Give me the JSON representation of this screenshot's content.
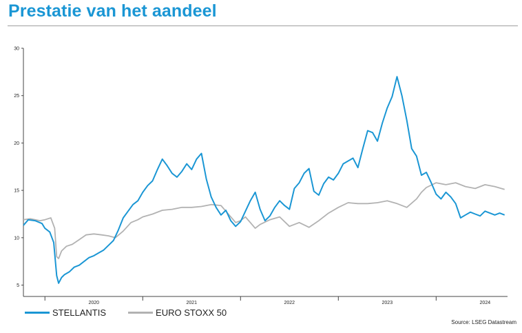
{
  "title": "Prestatie van het aandeel",
  "source": "Source: LSEG Datastream",
  "chart_data": {
    "type": "line",
    "ylim": [
      3.8,
      30
    ],
    "yticks": [
      5,
      10,
      15,
      20,
      25,
      30
    ],
    "xlim": [
      2019.78,
      2024.73
    ],
    "xticks": [
      {
        "label": "2020",
        "x": 2020.0
      },
      {
        "label": "2021",
        "x": 2021.0
      },
      {
        "label": "2022",
        "x": 2022.0
      },
      {
        "label": "2023",
        "x": 2023.0
      },
      {
        "label": "2024",
        "x": 2024.0
      }
    ],
    "grid": false,
    "legend_position": "bottom-left",
    "series": [
      {
        "name": "STELLANTIS",
        "color": "#1a96d4",
        "x": [
          2019.78,
          2019.83,
          2019.9,
          2019.97,
          2020.0,
          2020.05,
          2020.09,
          2020.12,
          2020.14,
          2020.17,
          2020.2,
          2020.25,
          2020.3,
          2020.35,
          2020.4,
          2020.45,
          2020.5,
          2020.55,
          2020.6,
          2020.65,
          2020.7,
          2020.75,
          2020.8,
          2020.85,
          2020.9,
          2020.95,
          2021.0,
          2021.05,
          2021.1,
          2021.15,
          2021.2,
          2021.25,
          2021.3,
          2021.35,
          2021.4,
          2021.45,
          2021.5,
          2021.55,
          2021.6,
          2021.65,
          2021.7,
          2021.75,
          2021.8,
          2021.85,
          2021.9,
          2021.95,
          2022.0,
          2022.05,
          2022.1,
          2022.15,
          2022.2,
          2022.25,
          2022.3,
          2022.35,
          2022.4,
          2022.45,
          2022.5,
          2022.55,
          2022.6,
          2022.65,
          2022.7,
          2022.75,
          2022.8,
          2022.85,
          2022.9,
          2022.95,
          2023.0,
          2023.05,
          2023.1,
          2023.15,
          2023.2,
          2023.25,
          2023.3,
          2023.35,
          2023.4,
          2023.45,
          2023.5,
          2023.55,
          2023.6,
          2023.65,
          2023.7,
          2023.75,
          2023.8,
          2023.85,
          2023.9,
          2023.95,
          2024.0,
          2024.05,
          2024.1,
          2024.15,
          2024.2,
          2024.25,
          2024.3,
          2024.35,
          2024.4,
          2024.45,
          2024.5,
          2024.55,
          2024.6,
          2024.65,
          2024.7
        ],
        "y": [
          11.3,
          11.9,
          11.8,
          11.5,
          11.0,
          10.6,
          9.5,
          6.0,
          5.2,
          5.8,
          6.1,
          6.4,
          6.9,
          7.1,
          7.5,
          7.9,
          8.1,
          8.4,
          8.7,
          9.2,
          9.7,
          10.8,
          12.1,
          12.8,
          13.5,
          13.9,
          14.8,
          15.5,
          16.0,
          17.2,
          18.3,
          17.6,
          16.8,
          16.4,
          17.0,
          17.8,
          17.2,
          18.3,
          18.9,
          16.2,
          14.3,
          13.2,
          12.4,
          12.9,
          11.8,
          11.2,
          11.7,
          12.8,
          13.9,
          14.8,
          13.0,
          11.8,
          12.3,
          13.2,
          13.9,
          13.4,
          13.0,
          15.2,
          15.8,
          16.8,
          17.3,
          14.9,
          14.5,
          15.7,
          16.4,
          16.1,
          16.8,
          17.8,
          18.1,
          18.4,
          17.4,
          19.4,
          21.3,
          21.1,
          20.2,
          22.1,
          23.7,
          24.9,
          27.0,
          25.0,
          22.4,
          19.4,
          18.6,
          16.6,
          16.9,
          15.8,
          14.6,
          14.1,
          14.8,
          14.3,
          13.6,
          12.1,
          12.4,
          12.7,
          12.5,
          12.3,
          12.8,
          12.6,
          12.4,
          12.6,
          12.4
        ]
      },
      {
        "name": "EURO STOXX 50",
        "color": "#b2b2b2",
        "x": [
          2019.78,
          2019.85,
          2019.95,
          2020.0,
          2020.06,
          2020.1,
          2020.12,
          2020.14,
          2020.17,
          2020.22,
          2020.28,
          2020.35,
          2020.42,
          2020.5,
          2020.58,
          2020.65,
          2020.72,
          2020.8,
          2020.88,
          2020.95,
          2021.0,
          2021.1,
          2021.2,
          2021.3,
          2021.4,
          2021.5,
          2021.6,
          2021.7,
          2021.8,
          2021.85,
          2021.9,
          2021.95,
          2022.0,
          2022.05,
          2022.1,
          2022.15,
          2022.2,
          2022.3,
          2022.4,
          2022.5,
          2022.6,
          2022.7,
          2022.8,
          2022.9,
          2023.0,
          2023.1,
          2023.2,
          2023.3,
          2023.4,
          2023.5,
          2023.6,
          2023.7,
          2023.8,
          2023.85,
          2023.9,
          2024.0,
          2024.1,
          2024.2,
          2024.3,
          2024.4,
          2024.5,
          2024.6,
          2024.7
        ],
        "y": [
          11.9,
          12.0,
          11.8,
          11.9,
          12.1,
          11.0,
          8.0,
          7.8,
          8.6,
          9.1,
          9.3,
          9.8,
          10.3,
          10.4,
          10.3,
          10.2,
          10.0,
          10.7,
          11.6,
          11.9,
          12.2,
          12.5,
          12.9,
          13.0,
          13.2,
          13.2,
          13.3,
          13.5,
          13.4,
          12.8,
          12.2,
          11.6,
          11.8,
          12.2,
          11.6,
          11.0,
          11.4,
          11.9,
          12.2,
          11.2,
          11.6,
          11.1,
          11.8,
          12.6,
          13.2,
          13.7,
          13.6,
          13.6,
          13.7,
          13.9,
          13.6,
          13.2,
          14.1,
          14.8,
          15.3,
          15.8,
          15.6,
          15.8,
          15.4,
          15.2,
          15.6,
          15.4,
          15.1
        ]
      }
    ]
  }
}
